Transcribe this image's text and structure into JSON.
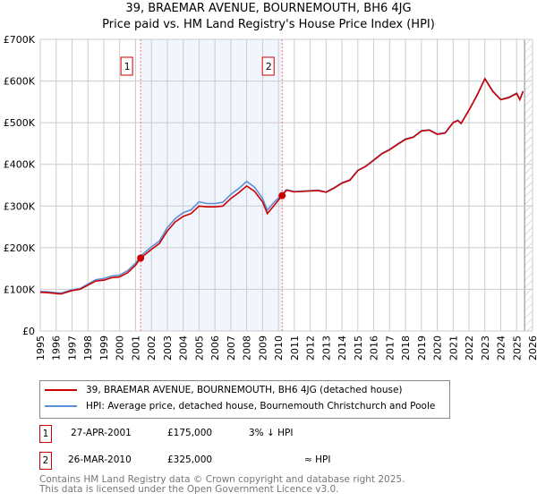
{
  "chart_data": {
    "type": "line",
    "title": "39, BRAEMAR AVENUE, BOURNEMOUTH, BH6 4JG",
    "subtitle": "Price paid vs. HM Land Registry's House Price Index (HPI)",
    "xlim": [
      1995,
      2026
    ],
    "ylim": [
      0,
      700000
    ],
    "yticks": [
      {
        "v": 0,
        "label": "£0"
      },
      {
        "v": 100000,
        "label": "£100K"
      },
      {
        "v": 200000,
        "label": "£200K"
      },
      {
        "v": 300000,
        "label": "£300K"
      },
      {
        "v": 400000,
        "label": "£400K"
      },
      {
        "v": 500000,
        "label": "£500K"
      },
      {
        "v": 600000,
        "label": "£600K"
      },
      {
        "v": 700000,
        "label": "£700K"
      }
    ],
    "xticks": [
      "1995",
      "1996",
      "1997",
      "1998",
      "1999",
      "2000",
      "2001",
      "2002",
      "2003",
      "2004",
      "2005",
      "2006",
      "2007",
      "2008",
      "2009",
      "2010",
      "2011",
      "2012",
      "2013",
      "2014",
      "2015",
      "2016",
      "2017",
      "2018",
      "2019",
      "2020",
      "2021",
      "2022",
      "2023",
      "2024",
      "2025",
      "2026"
    ],
    "grid": true,
    "shaded_range": [
      2001.32,
      2010.23
    ],
    "forecast_hatch_from": 2025.5,
    "series": [
      {
        "name": "39, BRAEMAR AVENUE, BOURNEMOUTH, BH6 4JG (detached house)",
        "color": "#cc0000",
        "x": [
          1995,
          1995.5,
          1996,
          1996.3,
          1997,
          1997.5,
          1998,
          1998.5,
          1999,
          1999.5,
          2000,
          2000.5,
          2001,
          2001.32,
          2002,
          2002.5,
          2003,
          2003.5,
          2004,
          2004.5,
          2005,
          2005.5,
          2006,
          2006.5,
          2007,
          2007.5,
          2008,
          2008.5,
          2009,
          2009.3,
          2009.7,
          2010.23,
          2010.5,
          2011,
          2011.5,
          2012,
          2012.5,
          2013,
          2013.5,
          2014,
          2014.5,
          2015,
          2015.5,
          2016,
          2016.5,
          2017,
          2017.5,
          2018,
          2018.5,
          2019,
          2019.5,
          2020,
          2020.5,
          2021,
          2021.3,
          2021.5,
          2022,
          2022.5,
          2023,
          2023.5,
          2024,
          2024.5,
          2025,
          2025.2,
          2025.4
        ],
        "y": [
          93000,
          92000,
          90000,
          89000,
          97000,
          100000,
          110000,
          120000,
          122000,
          128000,
          130000,
          140000,
          158000,
          175000,
          196000,
          210000,
          240000,
          262000,
          275000,
          282000,
          300000,
          298000,
          298000,
          300000,
          318000,
          332000,
          348000,
          335000,
          310000,
          282000,
          300000,
          325000,
          338000,
          334000,
          335000,
          336000,
          337000,
          333000,
          343000,
          355000,
          362000,
          385000,
          395000,
          410000,
          425000,
          435000,
          448000,
          460000,
          465000,
          480000,
          482000,
          472000,
          475000,
          500000,
          505000,
          498000,
          530000,
          565000,
          605000,
          575000,
          555000,
          560000,
          570000,
          555000,
          575000
        ]
      },
      {
        "name": "HPI: Average price, detached house, Bournemouth Christchurch and Poole",
        "color": "#5b8fd6",
        "x": [
          1995,
          1995.5,
          1996,
          1996.3,
          1997,
          1997.5,
          1998,
          1998.5,
          1999,
          1999.5,
          2000,
          2000.5,
          2001,
          2001.32,
          2002,
          2002.5,
          2003,
          2003.5,
          2004,
          2004.5,
          2005,
          2005.5,
          2006,
          2006.5,
          2007,
          2007.5,
          2008,
          2008.5,
          2009,
          2009.3,
          2009.7,
          2010.23,
          2010.5,
          2011,
          2011.5,
          2012,
          2012.5,
          2013,
          2013.5,
          2014,
          2014.5,
          2015,
          2015.5,
          2016,
          2016.5,
          2017,
          2017.5,
          2018,
          2018.5,
          2019,
          2019.5,
          2020,
          2020.5,
          2021,
          2021.3,
          2021.5,
          2022,
          2022.5,
          2023,
          2023.5,
          2024,
          2024.5,
          2025,
          2025.2,
          2025.4
        ],
        "y": [
          95000,
          94000,
          92000,
          91000,
          99000,
          102000,
          113000,
          123000,
          126000,
          132000,
          134000,
          145000,
          163000,
          180000,
          202000,
          216000,
          248000,
          270000,
          284000,
          291000,
          310000,
          306000,
          306000,
          309000,
          328000,
          342000,
          359000,
          345000,
          318000,
          290000,
          308000,
          328000,
          339000,
          335000,
          336000,
          337000,
          338000,
          334000,
          344000,
          356000,
          363000,
          386000,
          396000,
          411000,
          426000,
          436000,
          449000,
          461000,
          466000,
          481000,
          483000,
          473000,
          476000,
          501000,
          506000,
          499000,
          531000,
          566000,
          606000,
          576000,
          556000,
          561000,
          571000,
          556000,
          576000
        ]
      }
    ],
    "annotations": [
      {
        "label": "1",
        "x": 2001.32,
        "y": 175000
      },
      {
        "label": "2",
        "x": 2010.23,
        "y": 325000
      }
    ]
  },
  "legend": {
    "line1": "39, BRAEMAR AVENUE, BOURNEMOUTH, BH6 4JG (detached house)",
    "line2": "HPI: Average price, detached house, Bournemouth Christchurch and Poole"
  },
  "transactions": [
    {
      "num": "1",
      "date": "27-APR-2001",
      "price": "£175,000",
      "hpi": "3% ↓ HPI"
    },
    {
      "num": "2",
      "date": "26-MAR-2010",
      "price": "£325,000",
      "hpi": "≈ HPI"
    }
  ],
  "footer": {
    "line1": "Contains HM Land Registry data © Crown copyright and database right 2025.",
    "line2": "This data is licensed under the Open Government Licence v3.0."
  }
}
